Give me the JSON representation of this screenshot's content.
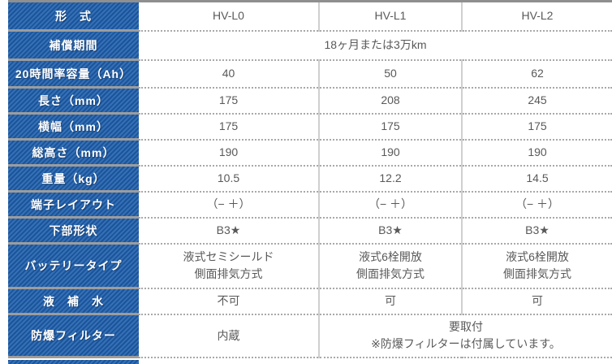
{
  "table": {
    "columns": [
      "HV-L0",
      "HV-L1",
      "HV-L2"
    ],
    "rows": [
      {
        "label": "形　式"
      },
      {
        "label": "補償期間",
        "merged_value": "18ヶ月または3万km"
      },
      {
        "label": "20時間率容量（Ah）",
        "values": [
          "40",
          "50",
          "62"
        ]
      },
      {
        "label": "長さ（mm）",
        "values": [
          "175",
          "208",
          "245"
        ]
      },
      {
        "label": "横幅（mm）",
        "values": [
          "175",
          "175",
          "175"
        ]
      },
      {
        "label": "総高さ（mm）",
        "values": [
          "190",
          "190",
          "190"
        ]
      },
      {
        "label": "重量（kg）",
        "values": [
          "10.5",
          "12.2",
          "14.5"
        ]
      },
      {
        "label": "端子レイアウト",
        "values": [
          "（− ＋）",
          "（− ＋）",
          "（− ＋）"
        ]
      },
      {
        "label": "下部形状",
        "values": [
          "B3★",
          "B3★",
          "B3★"
        ]
      },
      {
        "label": "バッテリータイプ",
        "values": [
          "液式セミシールド\n側面排気方式",
          "液式6栓開放\n側面排気方式",
          "液式6栓開放\n側面排気方式"
        ]
      },
      {
        "label": "液　補　水",
        "values": [
          "不可",
          "可",
          "可"
        ]
      },
      {
        "label": "防爆フィルター",
        "values": [
          "内蔵"
        ],
        "merged_value": "要取付\n※防爆フィルターは付属しています。"
      }
    ],
    "colors": {
      "header_stripe_dark": "#1b549b",
      "header_stripe_light": "#3570b5",
      "header_text": "#ffffff",
      "cell_text": "#595959",
      "grid_line_solid": "#cfcfcf",
      "grid_line_dotted": "#a9a9a9",
      "top_border": "#8f8f8f"
    }
  }
}
